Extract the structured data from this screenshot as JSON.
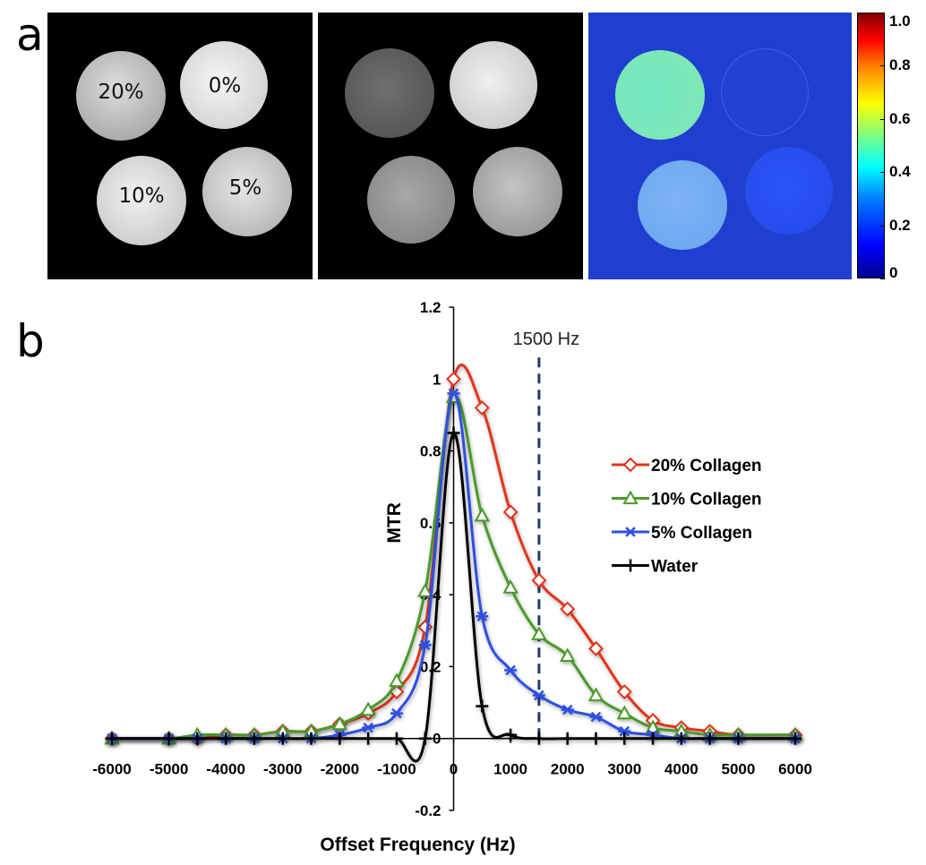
{
  "panel_a": {
    "letter": "a",
    "phantom_labels": {
      "tl": "20%",
      "tr": "0%",
      "bl": "10%",
      "br": "5%"
    },
    "colorbar": {
      "ticks": [
        "1.0",
        "0.8",
        "0.6",
        "0.4",
        "0.2",
        "0"
      ],
      "tick_values": [
        1.0,
        0.8,
        0.6,
        0.4,
        0.2,
        0.0
      ]
    }
  },
  "panel_b": {
    "letter": "b"
  },
  "chart_data": {
    "type": "line",
    "xlabel": "Offset Frequency (Hz)",
    "ylabel": "MTR",
    "xlim": [
      -6000,
      6000
    ],
    "ylim": [
      -0.2,
      1.2
    ],
    "xticks": [
      -6000,
      -5000,
      -4000,
      -3000,
      -2000,
      -1000,
      0,
      1000,
      2000,
      3000,
      4000,
      5000,
      6000
    ],
    "xtick_labels": [
      "-6000",
      "-5000",
      "-4000",
      "-3000",
      "-2000",
      "-1000",
      "0",
      "1000",
      "2000",
      "3000",
      "4000",
      "5000",
      "6000"
    ],
    "yticks": [
      -0.2,
      0,
      0.2,
      0.4,
      0.6,
      0.8,
      1,
      1.2
    ],
    "ytick_labels": [
      "-0.2",
      "0",
      "0.2",
      "0.4",
      "0.6",
      "0.8",
      "1",
      "1.2"
    ],
    "grid": false,
    "legend_position": "right",
    "annotation": {
      "text": "1500 Hz",
      "x": 1500,
      "style": "dashed",
      "color": "#1f3a6e"
    },
    "series": [
      {
        "name": "20% Collagen",
        "color": "#e0341a",
        "marker": "diamond",
        "x": [
          -6000,
          -5000,
          -4500,
          -4000,
          -3500,
          -3000,
          -2500,
          -2000,
          -1500,
          -1000,
          -500,
          0,
          500,
          1000,
          1500,
          2000,
          2500,
          3000,
          3500,
          4000,
          4500,
          5000,
          6000
        ],
        "y": [
          0.0,
          0.0,
          0.0,
          0.01,
          0.01,
          0.02,
          0.02,
          0.04,
          0.07,
          0.13,
          0.31,
          1.0,
          0.92,
          0.63,
          0.44,
          0.36,
          0.25,
          0.13,
          0.05,
          0.03,
          0.02,
          0.01,
          0.01
        ]
      },
      {
        "name": "10% Collagen",
        "color": "#4a9a2a",
        "marker": "triangle",
        "x": [
          -6000,
          -5000,
          -4500,
          -4000,
          -3500,
          -3000,
          -2500,
          -2000,
          -1500,
          -1000,
          -500,
          0,
          500,
          1000,
          1500,
          2000,
          2500,
          3000,
          3500,
          4000,
          4500,
          5000,
          6000
        ],
        "y": [
          0.0,
          0.0,
          0.01,
          0.01,
          0.01,
          0.02,
          0.02,
          0.04,
          0.08,
          0.16,
          0.41,
          0.95,
          0.62,
          0.42,
          0.29,
          0.23,
          0.12,
          0.07,
          0.03,
          0.02,
          0.01,
          0.01,
          0.01
        ]
      },
      {
        "name": "5% Collagen",
        "color": "#2e4fe0",
        "marker": "asterisk",
        "x": [
          -6000,
          -5000,
          -4500,
          -4000,
          -3500,
          -3000,
          -2500,
          -2000,
          -1500,
          -1000,
          -500,
          0,
          500,
          1000,
          1500,
          2000,
          2500,
          3000,
          3500,
          4000,
          4500,
          5000,
          6000
        ],
        "y": [
          0.0,
          0.0,
          0.0,
          0.0,
          0.0,
          0.0,
          0.0,
          0.01,
          0.03,
          0.07,
          0.26,
          0.96,
          0.34,
          0.19,
          0.12,
          0.08,
          0.06,
          0.02,
          0.01,
          0.0,
          0.0,
          0.0,
          0.0
        ]
      },
      {
        "name": "Water",
        "color": "#000000",
        "marker": "plus",
        "x": [
          -6000,
          -5000,
          -4500,
          -4000,
          -3500,
          -3000,
          -2500,
          -2000,
          -1500,
          -1000,
          -500,
          0,
          500,
          1000,
          1500,
          2000,
          2500,
          3000,
          3500,
          4000,
          4500,
          5000,
          6000
        ],
        "y": [
          0.0,
          0.0,
          0.0,
          0.0,
          0.0,
          0.0,
          0.0,
          0.0,
          0.0,
          0.0,
          0.0,
          0.85,
          0.09,
          0.01,
          0.0,
          0.0,
          0.0,
          0.0,
          0.0,
          0.0,
          0.0,
          0.0,
          0.0
        ]
      }
    ]
  }
}
